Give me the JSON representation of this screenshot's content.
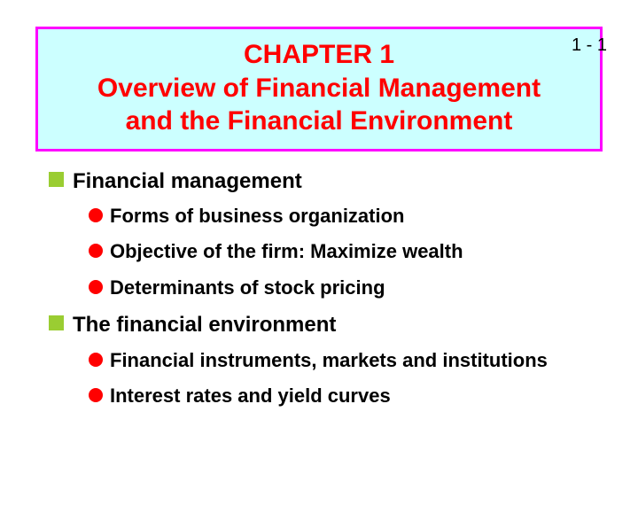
{
  "page_number": "1 - 1",
  "title_box": {
    "background_color": "#ccffff",
    "border_color": "#ff00ff",
    "text_color": "#ff0000",
    "chapter": "CHAPTER 1",
    "subtitle_line1": "Overview of Financial Management",
    "subtitle_line2": "and the Financial Environment"
  },
  "bullets": {
    "square_color": "#9acd32",
    "circle_color": "#ff0000",
    "level1_fontsize": 24,
    "level2_fontsize": 22,
    "section1": {
      "heading": "Financial management",
      "items": [
        "Forms of business organization",
        "Objective of the firm: Maximize wealth",
        "Determinants of stock pricing"
      ]
    },
    "section2": {
      "heading": "The financial environment",
      "items": [
        "Financial instruments, markets and institutions",
        "Interest rates and yield curves"
      ]
    }
  }
}
